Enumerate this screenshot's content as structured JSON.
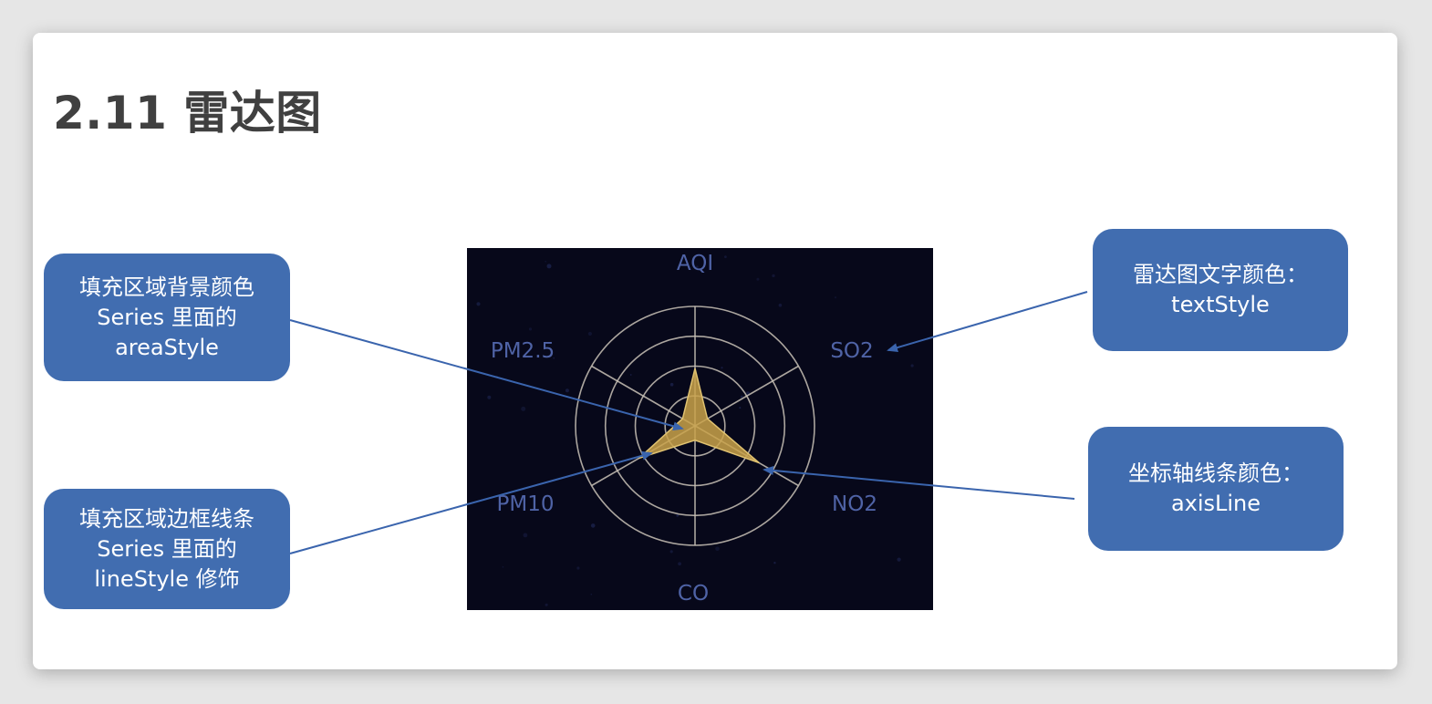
{
  "slide": {
    "title": "2.11 雷达图"
  },
  "callouts": {
    "area_style": {
      "lines": [
        "填充区域背景颜色",
        "Series 里面的",
        "areaStyle"
      ]
    },
    "line_style": {
      "lines": [
        "填充区域边框线条",
        "Series 里面的",
        "lineStyle 修饰"
      ]
    },
    "text_style": {
      "lines": [
        "雷达图文字颜色：",
        "textStyle"
      ]
    },
    "axis_line": {
      "lines": [
        "坐标轴线条颜色：",
        "axisLine"
      ]
    }
  },
  "chart_data": {
    "type": "radar",
    "indicators": [
      "AQI",
      "SO2",
      "NO2",
      "CO",
      "PM10",
      "PM2.5"
    ],
    "rings": 4,
    "series": [
      {
        "values": [
          0.48,
          0.12,
          0.62,
          0.12,
          0.54,
          0.12
        ]
      }
    ],
    "colors": {
      "background": "#07081a",
      "axis_line": "#c9c2b7",
      "split_line": "#c9c2b7",
      "label": "#4f63a6",
      "area_fill": "#c9a24a",
      "area_stroke": "#e0c270"
    }
  },
  "colors": {
    "callout_bg": "#416db0",
    "callout_text": "#ffffff",
    "arrow": "#3a64ad",
    "title": "#404040"
  }
}
